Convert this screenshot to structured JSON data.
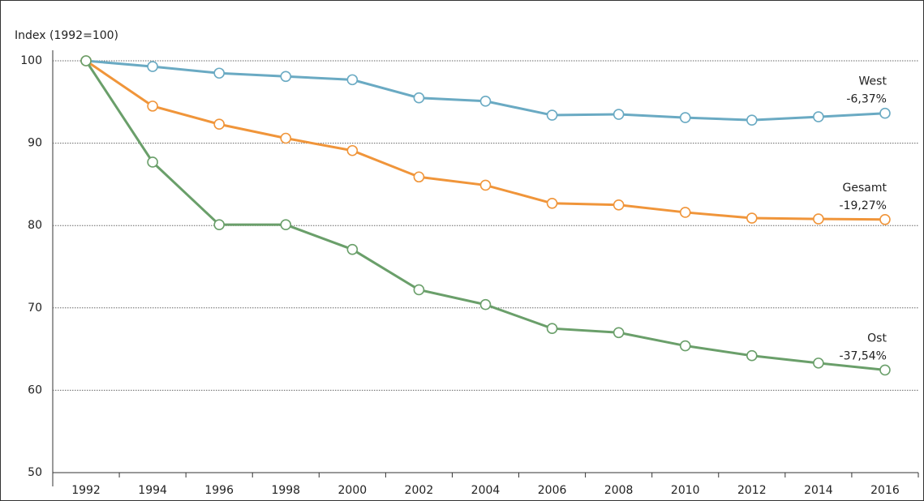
{
  "chart_data": {
    "type": "line",
    "y_label": "Index (1992=100)",
    "categories": [
      "1992",
      "1994",
      "1996",
      "1998",
      "2000",
      "2002",
      "2004",
      "2006",
      "2008",
      "2010",
      "2012",
      "2014",
      "2016"
    ],
    "series": [
      {
        "name": "West",
        "change": "-6,37%",
        "color": "#6aaac3",
        "values": [
          100,
          99.3,
          98.5,
          98.1,
          97.7,
          95.5,
          95.1,
          93.4,
          93.5,
          93.1,
          92.8,
          93.2,
          93.63
        ]
      },
      {
        "name": "Gesamt",
        "change": "-19,27%",
        "color": "#f0953a",
        "values": [
          100,
          94.5,
          92.3,
          90.6,
          89.1,
          85.9,
          84.9,
          82.7,
          82.5,
          81.6,
          80.9,
          80.8,
          80.73
        ]
      },
      {
        "name": "Ost",
        "change": "-37,54%",
        "color": "#6a9f6a",
        "values": [
          100,
          87.7,
          80.1,
          80.1,
          77.1,
          72.2,
          70.4,
          67.5,
          67.0,
          65.4,
          64.2,
          63.3,
          62.46
        ]
      }
    ],
    "ylim": [
      50,
      100
    ],
    "yticks": [
      50,
      60,
      70,
      80,
      90,
      100
    ],
    "grid": true
  }
}
